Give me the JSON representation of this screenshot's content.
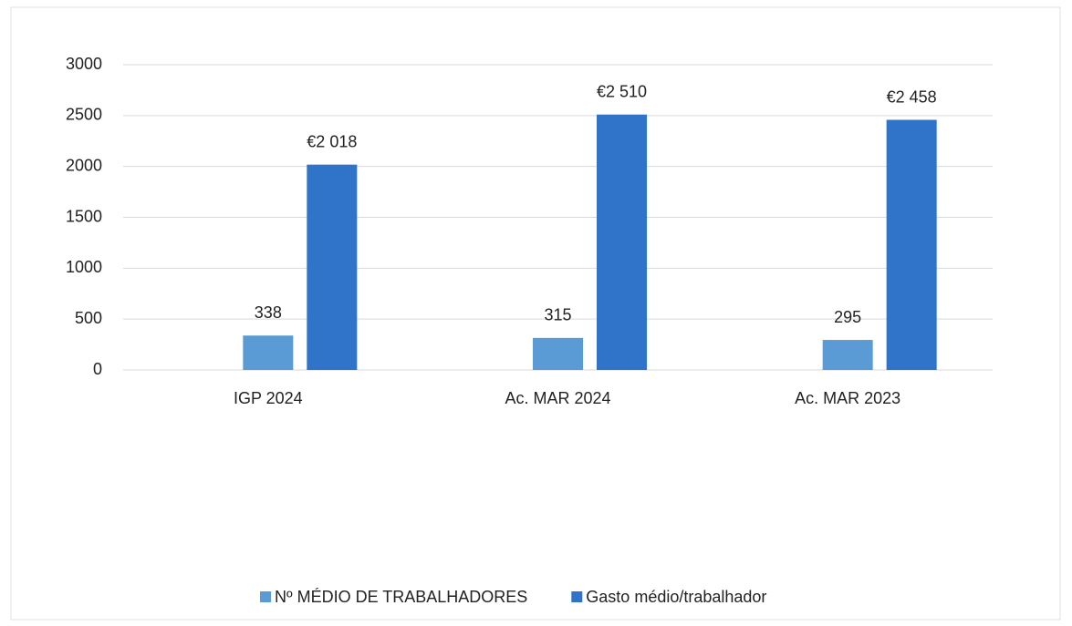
{
  "chart_data": {
    "type": "bar",
    "categories": [
      "IGP 2024",
      "Ac. MAR 2024",
      "Ac. MAR 2023"
    ],
    "series": [
      {
        "name": "Nº MÉDIO DE TRABALHADORES",
        "color": "#5b9bd5",
        "values": [
          338,
          315,
          295
        ]
      },
      {
        "name": "Gasto médio/trabalhador",
        "color": "#2f74c9",
        "values": [
          2018,
          2510,
          2458
        ],
        "value_labels": [
          "€2 018",
          "€2 510",
          "€2 458"
        ]
      }
    ],
    "ylim": [
      0,
      3000
    ],
    "yticks": [
      0,
      500,
      1000,
      1500,
      2000,
      2500,
      3000
    ],
    "grid": true,
    "legend": "bottom"
  }
}
